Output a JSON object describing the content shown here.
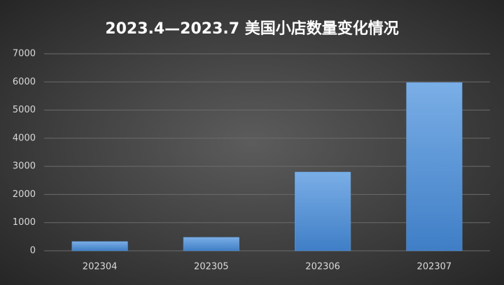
{
  "chart_data": {
    "type": "bar",
    "title": "2023.4—2023.7 美国小店数量变化情况",
    "categories": [
      "202304",
      "202305",
      "202306",
      "202307"
    ],
    "values": [
      330,
      480,
      2800,
      5980
    ],
    "color": "#5b9bd5",
    "ylim": [
      0,
      7000
    ],
    "yticks": [
      0,
      1000,
      2000,
      3000,
      4000,
      5000,
      6000,
      7000
    ],
    "grid": true
  }
}
